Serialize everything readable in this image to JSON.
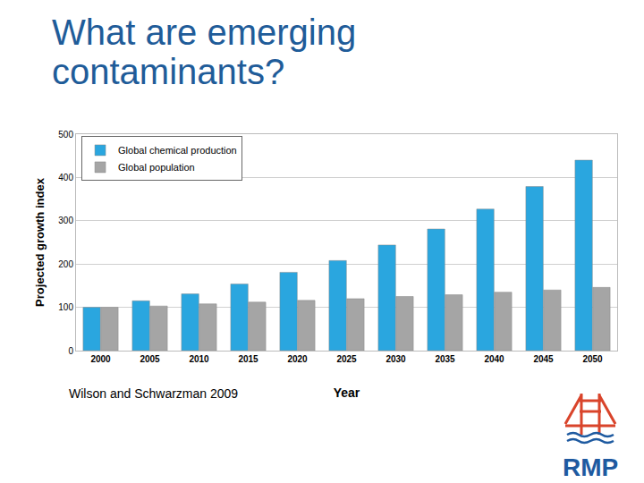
{
  "chart_data": {
    "type": "bar",
    "title": "What are emerging contaminants?",
    "x_label": "Year",
    "y_label": "Projected growth index",
    "categories": [
      "2000",
      "2005",
      "2010",
      "2015",
      "2020",
      "2025",
      "2030",
      "2035",
      "2040",
      "2045",
      "2050"
    ],
    "series": [
      {
        "name": "Global chemical production",
        "color": "#2aa6df",
        "values": [
          100,
          115,
          131,
          154,
          181,
          208,
          244,
          281,
          327,
          379,
          440
        ]
      },
      {
        "name": "Global population",
        "color": "#a5a5a5",
        "values": [
          100,
          103,
          108,
          112,
          116,
          120,
          125,
          129,
          135,
          140,
          146
        ]
      }
    ],
    "ylim": [
      0,
      500
    ],
    "yticks": [
      0,
      100,
      200,
      300,
      400,
      500
    ],
    "grid": true,
    "legend": "top-left",
    "annotations": [
      "Wilson and Schwarzman 2009",
      "RMP"
    ]
  }
}
